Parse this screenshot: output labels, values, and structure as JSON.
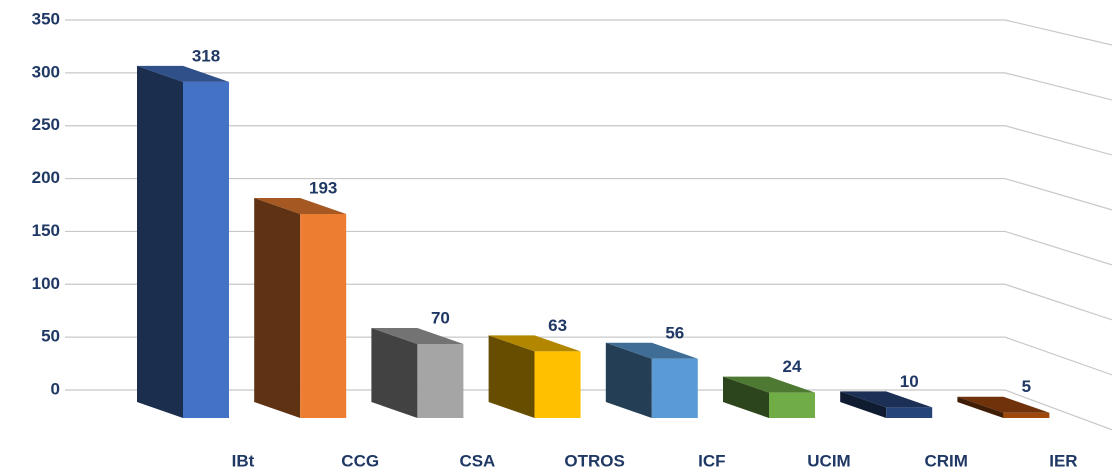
{
  "chart_data": {
    "type": "bar3d",
    "categories": [
      "IBt",
      "CCG",
      "CSA",
      "OTROS",
      "ICF",
      "UCIM",
      "CRIM",
      "IER"
    ],
    "values": [
      318,
      193,
      70,
      63,
      56,
      24,
      10,
      5
    ],
    "colors": [
      "#4472c4",
      "#ed7d31",
      "#a5a5a5",
      "#ffc000",
      "#5b9bd5",
      "#70ad47",
      "#264478",
      "#9e480e"
    ],
    "ylim": [
      0,
      350
    ],
    "yticks": [
      0,
      50,
      100,
      150,
      200,
      250,
      300,
      350
    ],
    "grid": true
  }
}
